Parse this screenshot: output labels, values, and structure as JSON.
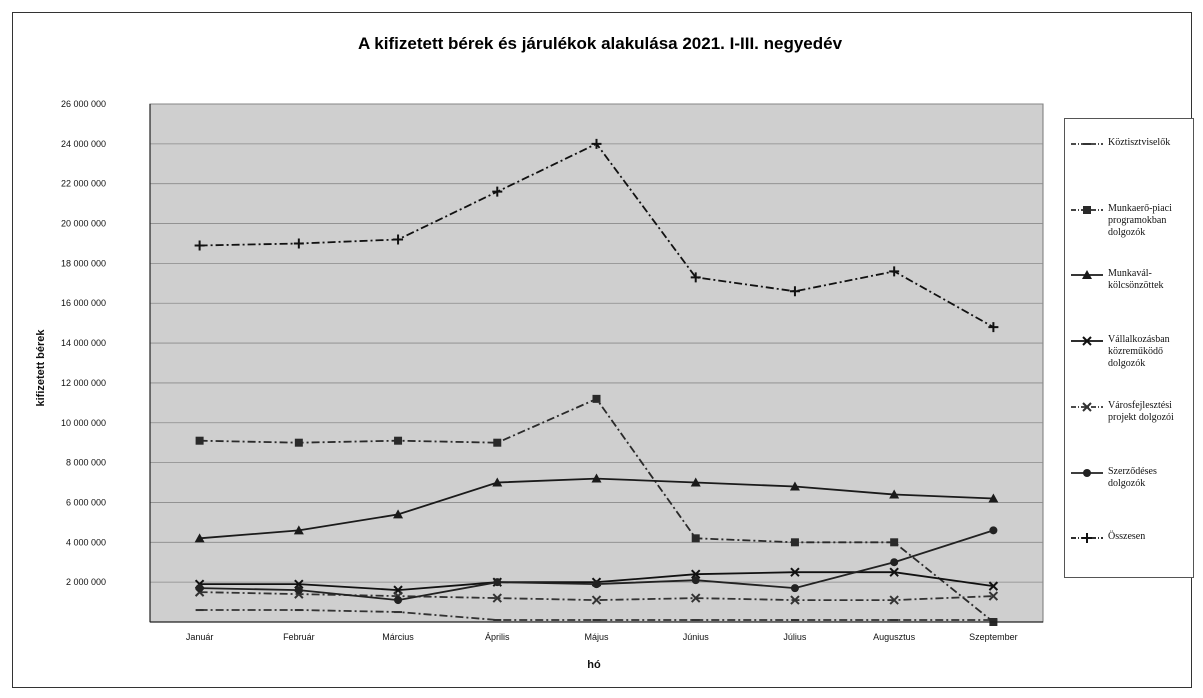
{
  "chart_data": {
    "type": "line",
    "title": "A kifizetett bérek és járulékok alakulása 2021. I-III. negyedév",
    "xlabel": "hó",
    "ylabel": "kifizetett bérek",
    "ylim": [
      0,
      26000000
    ],
    "yticks": [
      {
        "value": 2000000,
        "label": "2 000 000"
      },
      {
        "value": 4000000,
        "label": "4 000 000"
      },
      {
        "value": 6000000,
        "label": "6 000 000"
      },
      {
        "value": 8000000,
        "label": "8 000 000"
      },
      {
        "value": 10000000,
        "label": "10 000 000"
      },
      {
        "value": 12000000,
        "label": "12 000 000"
      },
      {
        "value": 14000000,
        "label": "14 000 000"
      },
      {
        "value": 16000000,
        "label": "16 000 000"
      },
      {
        "value": 18000000,
        "label": "18 000 000"
      },
      {
        "value": 20000000,
        "label": "20 000 000"
      },
      {
        "value": 22000000,
        "label": "22 000 000"
      },
      {
        "value": 24000000,
        "label": "24 000 000"
      },
      {
        "value": 26000000,
        "label": "26 000 000"
      }
    ],
    "categories": [
      "Január",
      "Február",
      "Március",
      "Április",
      "Május",
      "Június",
      "Július",
      "Augusztus",
      "Szeptember"
    ],
    "grid": true,
    "legend_position": "right",
    "series": [
      {
        "name": "Köztisztviselők",
        "color": "#333333",
        "dash": "8,3,2,3",
        "marker": "tick",
        "values": [
          600000,
          600000,
          500000,
          100000,
          100000,
          100000,
          100000,
          100000,
          100000
        ]
      },
      {
        "name": "Munkaerő-piaci programokban dolgozók",
        "color": "#2a2a2a",
        "dash": "8,3,2,3",
        "marker": "square",
        "values": [
          9100000,
          9000000,
          9100000,
          9000000,
          11200000,
          4200000,
          4000000,
          4000000,
          0
        ]
      },
      {
        "name": "Munkavál-kölcsönzöttek",
        "color": "#1a1a1a",
        "dash": "",
        "marker": "triangle",
        "values": [
          4200000,
          4600000,
          5400000,
          7000000,
          7200000,
          7000000,
          6800000,
          6400000,
          6200000
        ]
      },
      {
        "name": "Vállalkozásban közreműködő dolgozók",
        "color": "#111111",
        "dash": "",
        "marker": "x",
        "values": [
          1900000,
          1900000,
          1600000,
          2000000,
          2000000,
          2400000,
          2500000,
          2500000,
          1800000
        ]
      },
      {
        "name": "Városfejlesztési projekt dolgozói",
        "color": "#333333",
        "dash": "8,3,2,3",
        "marker": "x",
        "values": [
          1500000,
          1400000,
          1300000,
          1200000,
          1100000,
          1200000,
          1100000,
          1100000,
          1300000
        ]
      },
      {
        "name": "Szerződéses dolgozók",
        "color": "#222222",
        "dash": "",
        "marker": "circle",
        "values": [
          1700000,
          1600000,
          1100000,
          2000000,
          1900000,
          2100000,
          1700000,
          3000000,
          4600000
        ]
      },
      {
        "name": "Összesen",
        "color": "#111111",
        "dash": "8,3,2,3",
        "marker": "plus",
        "values": [
          18900000,
          19000000,
          19200000,
          21600000,
          24000000,
          17300000,
          16600000,
          17600000,
          14800000
        ]
      }
    ]
  }
}
